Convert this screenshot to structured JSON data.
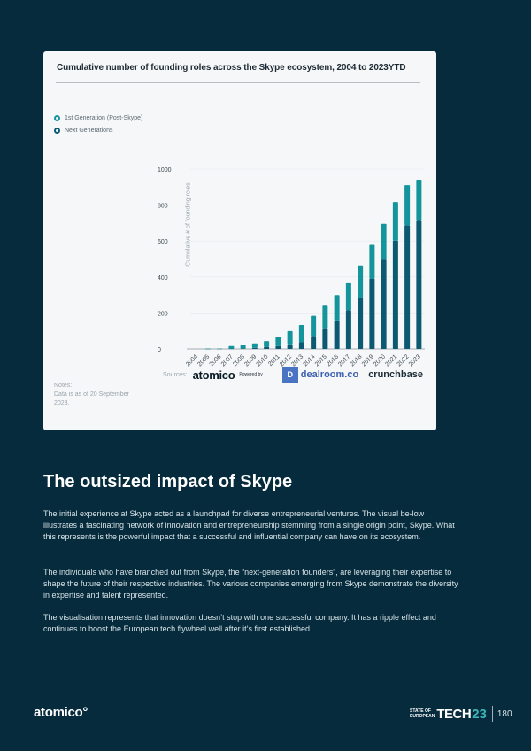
{
  "card": {
    "title": "Cumulative number of founding roles across the Skype ecosystem, 2004 to 2023YTD",
    "notes_label": "Notes:",
    "notes_text": "Data is as of 20 September 2023.",
    "sources_label": "Sources:",
    "source_logos": {
      "atomico": "atomico",
      "powered_by": "Powered by",
      "dealroom_icon": "▐D",
      "dealroom": "dealroom.co",
      "crunchbase": "crunchbase"
    }
  },
  "chart_data": {
    "type": "bar",
    "stacked": true,
    "title": "Cumulative number of founding roles across the Skype ecosystem, 2004 to 2023YTD",
    "xlabel": "",
    "ylabel": "Cumulative # of founding roles",
    "ylim": [
      0,
      1000
    ],
    "yticks": [
      0,
      200,
      400,
      600,
      800,
      1000
    ],
    "grid": true,
    "legend_position": "left",
    "categories": [
      "2004",
      "2005",
      "2006",
      "2007",
      "2008",
      "2009",
      "2010",
      "2011",
      "2012",
      "2013",
      "2014",
      "2015",
      "2016",
      "2017",
      "2018",
      "2019",
      "2020",
      "2021",
      "2022",
      "2023"
    ],
    "series": [
      {
        "name": "Next Generations",
        "color": "#0b5a72",
        "values": [
          0,
          1,
          1,
          2,
          3,
          6,
          12,
          16,
          26,
          39,
          72,
          115,
          158,
          214,
          286,
          391,
          497,
          602,
          688,
          717
        ]
      },
      {
        "name": "1st Generation (Post-Skype)",
        "color": "#14959c",
        "values": [
          0,
          1,
          1,
          14,
          18,
          25,
          32,
          50,
          73,
          94,
          112,
          130,
          141,
          156,
          178,
          188,
          199,
          215,
          223,
          224
        ]
      }
    ],
    "totals": [
      0,
      2,
      2,
      16,
      21,
      31,
      44,
      66,
      99,
      133,
      184,
      245,
      299,
      370,
      464,
      579,
      696,
      817,
      911,
      941
    ]
  },
  "legend": [
    {
      "label": "1st Generation (Post-Skype)",
      "color": "#14959c"
    },
    {
      "label": "Next Generations",
      "color": "#0b5a72"
    }
  ],
  "section": {
    "heading": "The outsized impact of Skype",
    "paragraphs": [
      "The initial experience at Skype acted as a launchpad for diverse entrepreneurial ventures. The visual be-low illustrates a fascinating network of innovation and entrepreneurship stemming from a single origin point, Skype. What this represents is the powerful impact that a successful and influential company can have on its ecosystem.",
      "The individuals who have branched out from Skype, the “next-generation founders”, are leveraging their expertise to shape the future of their respective industries. The various companies emerging from Skype demonstrate the diversity in expertise and talent represented.",
      "The visualisation represents that innovation doesn’t stop with one successful company. It has a ripple effect and continues to boost the European tech flywheel well after it’s first established."
    ]
  },
  "footer": {
    "logo": "atomico°",
    "state_of": "STATE OF",
    "european": "EUROPEAN",
    "tech": "TECH",
    "year": "23",
    "page_number": "180"
  }
}
